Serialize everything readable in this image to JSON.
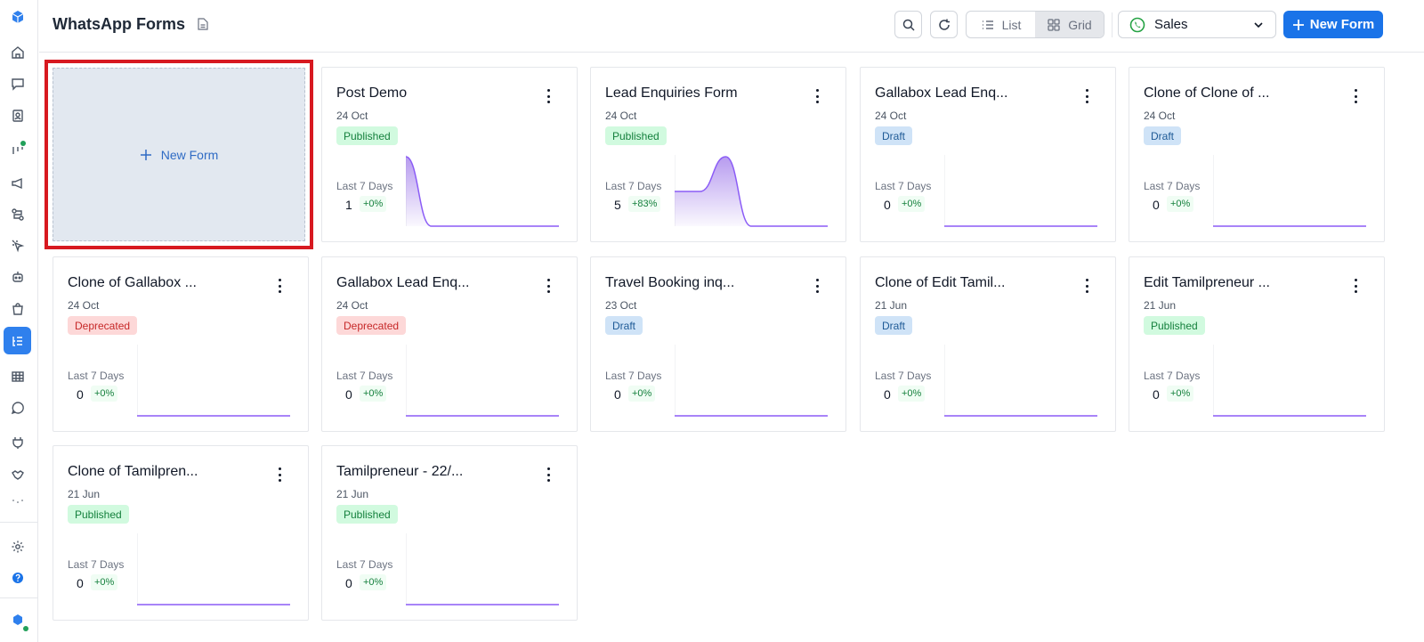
{
  "header": {
    "title": "WhatsApp Forms",
    "view_list_label": "List",
    "view_grid_label": "Grid",
    "channel_selected": "Sales",
    "new_form_label": "New Form"
  },
  "new_card": {
    "label": "New Form"
  },
  "colors": {
    "accent": "#1a73e8",
    "published": "#15803d",
    "draft": "#1e5a96",
    "deprecated": "#c62828",
    "spark": "#9f7aea"
  },
  "cards": [
    {
      "name": "Post Demo",
      "date": "24 Oct",
      "status": "Published",
      "status_kind": "published",
      "last7_label": "Last 7 Days",
      "count": "1",
      "change": "+0%",
      "spark": [
        1,
        0,
        0,
        0,
        0,
        0,
        0
      ]
    },
    {
      "name": "Lead Enquiries Form",
      "date": "24 Oct",
      "status": "Published",
      "status_kind": "published",
      "last7_label": "Last 7 Days",
      "count": "5",
      "change": "+83%",
      "spark": [
        0.5,
        0.5,
        1,
        0,
        0,
        0,
        0
      ]
    },
    {
      "name": "Gallabox Lead Enq...",
      "date": "24 Oct",
      "status": "Draft",
      "status_kind": "draft",
      "last7_label": "Last 7 Days",
      "count": "0",
      "change": "+0%",
      "spark": [
        0,
        0,
        0,
        0,
        0,
        0,
        0
      ]
    },
    {
      "name": "Clone of Clone of ...",
      "date": "24 Oct",
      "status": "Draft",
      "status_kind": "draft",
      "last7_label": "Last 7 Days",
      "count": "0",
      "change": "+0%",
      "spark": [
        0,
        0,
        0,
        0,
        0,
        0,
        0
      ]
    },
    {
      "name": "Clone of Gallabox ...",
      "date": "24 Oct",
      "status": "Deprecated",
      "status_kind": "deprecated",
      "last7_label": "Last 7 Days",
      "count": "0",
      "change": "+0%",
      "spark": [
        0,
        0,
        0,
        0,
        0,
        0,
        0
      ]
    },
    {
      "name": "Gallabox Lead Enq...",
      "date": "24 Oct",
      "status": "Deprecated",
      "status_kind": "deprecated",
      "last7_label": "Last 7 Days",
      "count": "0",
      "change": "+0%",
      "spark": [
        0,
        0,
        0,
        0,
        0,
        0,
        0
      ]
    },
    {
      "name": "Travel Booking inq...",
      "date": "23 Oct",
      "status": "Draft",
      "status_kind": "draft",
      "last7_label": "Last 7 Days",
      "count": "0",
      "change": "+0%",
      "spark": [
        0,
        0,
        0,
        0,
        0,
        0,
        0
      ]
    },
    {
      "name": "Clone of Edit Tamil...",
      "date": "21 Jun",
      "status": "Draft",
      "status_kind": "draft",
      "last7_label": "Last 7 Days",
      "count": "0",
      "change": "+0%",
      "spark": [
        0,
        0,
        0,
        0,
        0,
        0,
        0
      ]
    },
    {
      "name": "Edit Tamilpreneur ...",
      "date": "21 Jun",
      "status": "Published",
      "status_kind": "published",
      "last7_label": "Last 7 Days",
      "count": "0",
      "change": "+0%",
      "spark": [
        0,
        0,
        0,
        0,
        0,
        0,
        0
      ]
    },
    {
      "name": "Clone of Tamilpren...",
      "date": "21 Jun",
      "status": "Published",
      "status_kind": "published",
      "last7_label": "Last 7 Days",
      "count": "0",
      "change": "+0%",
      "spark": [
        0,
        0,
        0,
        0,
        0,
        0,
        0
      ]
    },
    {
      "name": "Tamilpreneur - 22/...",
      "date": "21 Jun",
      "status": "Published",
      "status_kind": "published",
      "last7_label": "Last 7 Days",
      "count": "0",
      "change": "+0%",
      "spark": [
        0,
        0,
        0,
        0,
        0,
        0,
        0
      ]
    }
  ]
}
